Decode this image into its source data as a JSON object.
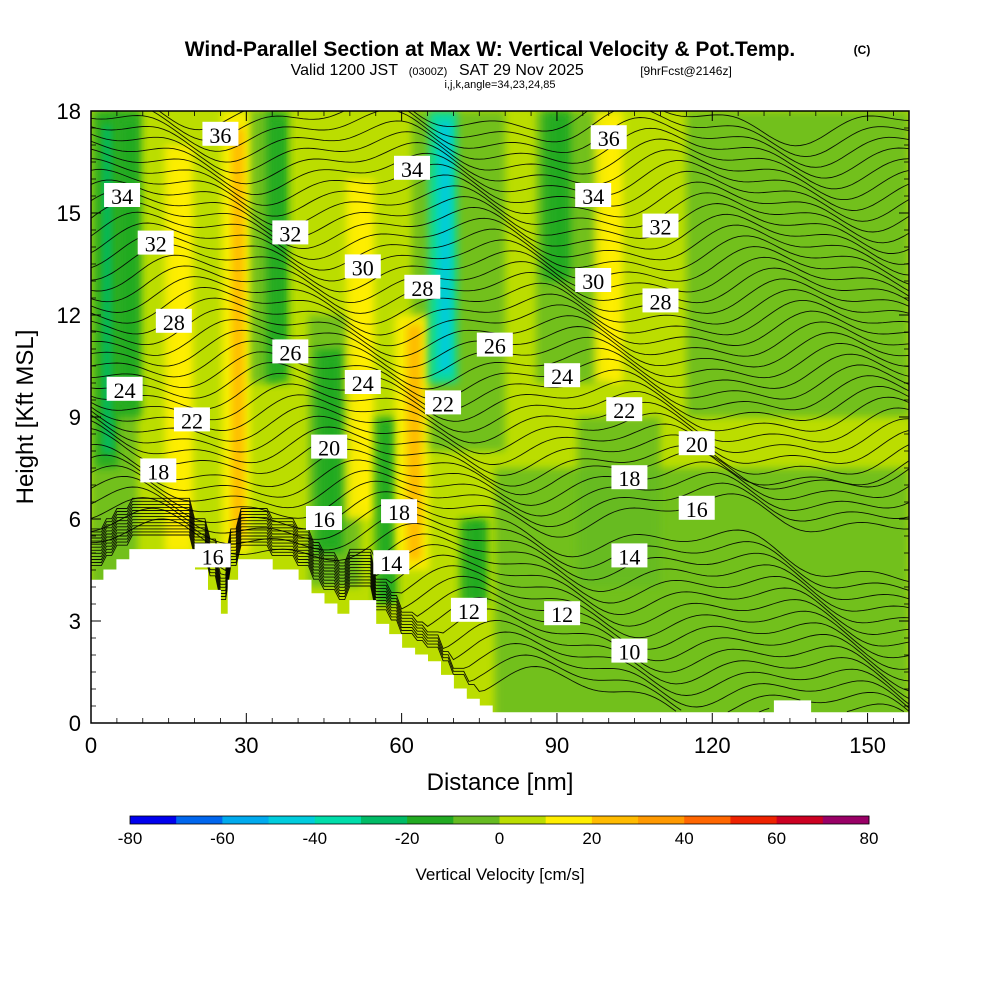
{
  "chart_data": {
    "type": "heatmap",
    "title": "Wind-Parallel Section at Max W: Vertical Velocity & Pot.Temp.",
    "title_mark": "(C)",
    "subtitle_main": "Valid 1200 JST",
    "subtitle_zulu": "(0300Z)",
    "subtitle_date": "SAT 29 Nov 2025",
    "subtitle_fcst": "[9hrFcst@2146z]",
    "subtitle_indices": "i,j,k,angle=34,23,24,85",
    "xlabel": "Distance [nm]",
    "ylabel": "Height [Kft MSL]",
    "xlim": [
      0,
      158
    ],
    "ylim": [
      0,
      18
    ],
    "x_ticks": [
      0,
      30,
      60,
      90,
      120,
      150
    ],
    "y_ticks": [
      0,
      3,
      6,
      9,
      12,
      15,
      18
    ],
    "colorbar": {
      "label": "Vertical Velocity [cm/s]",
      "ticks": [
        -80,
        -60,
        -40,
        -20,
        0,
        20,
        40,
        60,
        80
      ],
      "levels": [
        -80,
        -70,
        -60,
        -50,
        -40,
        -30,
        -20,
        -10,
        0,
        10,
        20,
        30,
        40,
        50,
        60,
        70,
        80
      ],
      "colors": [
        "#0000ee",
        "#0066ee",
        "#00aaee",
        "#00ccdd",
        "#00ddaa",
        "#00bb66",
        "#22aa22",
        "#66bb22",
        "#bbdd00",
        "#ffee00",
        "#ffbb00",
        "#ff9900",
        "#ff6600",
        "#ee2200",
        "#cc0022",
        "#990066"
      ]
    },
    "velocity_columns": [
      {
        "x": 3,
        "w": 2,
        "z0": 7.5,
        "z1": 18,
        "v": -25
      },
      {
        "x": 7,
        "w": 2.5,
        "z0": 9,
        "z1": 18,
        "v": -15
      },
      {
        "x": 17,
        "w": 2.5,
        "z0": 5,
        "z1": 17,
        "v": 15
      },
      {
        "x": 28,
        "w": 2.5,
        "z0": 5,
        "z1": 18,
        "v": 22
      },
      {
        "x": 36,
        "w": 2,
        "z0": 10,
        "z1": 18,
        "v": -12
      },
      {
        "x": 46,
        "w": 2.5,
        "z0": 5,
        "z1": 11,
        "v": -18
      },
      {
        "x": 52,
        "w": 2.5,
        "z0": 6,
        "z1": 16,
        "v": 18
      },
      {
        "x": 57,
        "w": 2,
        "z0": 3.5,
        "z1": 9,
        "v": -12
      },
      {
        "x": 62,
        "w": 3,
        "z0": 4.5,
        "z1": 12,
        "v": 28
      },
      {
        "x": 68,
        "w": 2.5,
        "z0": 10,
        "z1": 18,
        "v": -45
      },
      {
        "x": 74,
        "w": 2.5,
        "z0": 3.5,
        "z1": 6,
        "v": -18
      },
      {
        "x": 90,
        "w": 2.5,
        "z0": 13,
        "z1": 18,
        "v": -15
      },
      {
        "x": 100,
        "w": 2.5,
        "z0": 10,
        "z1": 18,
        "v": 18
      }
    ],
    "theta_levels": [
      10,
      12,
      14,
      16,
      18,
      20,
      22,
      24,
      26,
      28,
      30,
      32,
      34,
      36
    ],
    "contour_labels": [
      {
        "text": "36",
        "x": 25,
        "z": 17.3
      },
      {
        "text": "36",
        "x": 100,
        "z": 17.2
      },
      {
        "text": "34",
        "x": 6,
        "z": 15.5
      },
      {
        "text": "34",
        "x": 62,
        "z": 16.3
      },
      {
        "text": "34",
        "x": 97,
        "z": 15.5
      },
      {
        "text": "32",
        "x": 12.5,
        "z": 14.1
      },
      {
        "text": "32",
        "x": 38.5,
        "z": 14.4
      },
      {
        "text": "32",
        "x": 110,
        "z": 14.6
      },
      {
        "text": "30",
        "x": 52.5,
        "z": 13.4
      },
      {
        "text": "30",
        "x": 97,
        "z": 13.0
      },
      {
        "text": "28",
        "x": 16,
        "z": 11.8
      },
      {
        "text": "28",
        "x": 64,
        "z": 12.8
      },
      {
        "text": "28",
        "x": 110,
        "z": 12.4
      },
      {
        "text": "26",
        "x": 38.5,
        "z": 10.9
      },
      {
        "text": "26",
        "x": 78,
        "z": 11.1
      },
      {
        "text": "24",
        "x": 6.5,
        "z": 9.8
      },
      {
        "text": "24",
        "x": 52.5,
        "z": 10.0
      },
      {
        "text": "24",
        "x": 91,
        "z": 10.2
      },
      {
        "text": "22",
        "x": 19.5,
        "z": 8.9
      },
      {
        "text": "22",
        "x": 68,
        "z": 9.4
      },
      {
        "text": "22",
        "x": 103,
        "z": 9.2
      },
      {
        "text": "20",
        "x": 46,
        "z": 8.1
      },
      {
        "text": "20",
        "x": 117,
        "z": 8.2
      },
      {
        "text": "18",
        "x": 13,
        "z": 7.4
      },
      {
        "text": "18",
        "x": 59.5,
        "z": 6.2
      },
      {
        "text": "18",
        "x": 104,
        "z": 7.2
      },
      {
        "text": "16",
        "x": 45,
        "z": 6.0
      },
      {
        "text": "16",
        "x": 117,
        "z": 6.3
      },
      {
        "text": "16",
        "x": 23.5,
        "z": 4.9
      },
      {
        "text": "14",
        "x": 58,
        "z": 4.7
      },
      {
        "text": "14",
        "x": 104,
        "z": 4.9
      },
      {
        "text": "12",
        "x": 73,
        "z": 3.3
      },
      {
        "text": "12",
        "x": 91,
        "z": 3.2
      },
      {
        "text": "10",
        "x": 104,
        "z": 2.1
      }
    ],
    "terrain": [
      [
        0,
        4.2
      ],
      [
        2.5,
        4.2
      ],
      [
        2.5,
        4.5
      ],
      [
        5,
        4.5
      ],
      [
        5,
        4.8
      ],
      [
        7.5,
        4.8
      ],
      [
        7.5,
        5.1
      ],
      [
        20,
        5.1
      ],
      [
        20,
        4.5
      ],
      [
        22.5,
        4.5
      ],
      [
        22.5,
        3.9
      ],
      [
        25,
        3.9
      ],
      [
        25,
        3.2
      ],
      [
        26.5,
        3.2
      ],
      [
        26.5,
        4.2
      ],
      [
        28.5,
        4.2
      ],
      [
        28.5,
        4.8
      ],
      [
        35,
        4.8
      ],
      [
        35,
        4.5
      ],
      [
        40,
        4.5
      ],
      [
        40,
        4.2
      ],
      [
        42.5,
        4.2
      ],
      [
        42.5,
        3.8
      ],
      [
        45,
        3.8
      ],
      [
        45,
        3.5
      ],
      [
        47.5,
        3.5
      ],
      [
        47.5,
        3.2
      ],
      [
        50,
        3.2
      ],
      [
        50,
        3.6
      ],
      [
        55,
        3.6
      ],
      [
        55,
        2.9
      ],
      [
        57.5,
        2.9
      ],
      [
        57.5,
        2.6
      ],
      [
        60,
        2.6
      ],
      [
        60,
        2.2
      ],
      [
        62.5,
        2.2
      ],
      [
        62.5,
        2.0
      ],
      [
        65,
        2.0
      ],
      [
        65,
        1.8
      ],
      [
        67.5,
        1.8
      ],
      [
        67.5,
        1.4
      ],
      [
        70,
        1.4
      ],
      [
        70,
        1.0
      ],
      [
        72.5,
        1.0
      ],
      [
        72.5,
        0.7
      ],
      [
        75,
        0.7
      ],
      [
        75,
        0.5
      ],
      [
        77.5,
        0.5
      ],
      [
        77.5,
        0.3
      ],
      [
        132,
        0.3
      ],
      [
        132,
        0.65
      ],
      [
        139,
        0.65
      ],
      [
        139,
        0.3
      ],
      [
        158,
        0.3
      ]
    ]
  }
}
